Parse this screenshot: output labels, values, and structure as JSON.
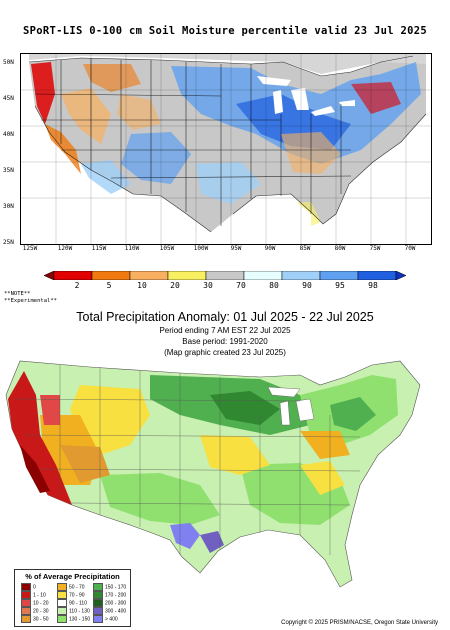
{
  "map1": {
    "title": "SPoRT-LIS 0-100 cm Soil Moisture percentile valid 23 Jul 2025",
    "lat_labels": [
      "50N",
      "45N",
      "40N",
      "35N",
      "30N",
      "25N"
    ],
    "lon_labels": [
      "125W",
      "120W",
      "115W",
      "110W",
      "105W",
      "100W",
      "95W",
      "90W",
      "85W",
      "80W",
      "75W",
      "70W"
    ],
    "legend_labels": [
      "2",
      "5",
      "10",
      "20",
      "30",
      "70",
      "80",
      "90",
      "95",
      "98"
    ],
    "legend_colors": [
      "#8b0000",
      "#e00000",
      "#f07a10",
      "#f8b060",
      "#f8f060",
      "#c8c8c8",
      "#e8ffff",
      "#a0d0f8",
      "#60a0f0",
      "#2060e0",
      "#1030c0"
    ],
    "note1": "**NOTE**",
    "note2": "**Experimental**"
  },
  "map2": {
    "title": "Total Precipitation Anomaly: 01 Jul 2025 - 22 Jul 2025",
    "subtitle1": "Period ending 7 AM EST 22 Jul 2025",
    "subtitle2": "Base period: 1991-2020",
    "subtitle3": "(Map graphic created 23 Jul 2025)",
    "legend_title": "% of Average Precipitation",
    "legend_items": [
      {
        "label": "0",
        "color": "#8b0000"
      },
      {
        "label": "1 - 10",
        "color": "#c81818"
      },
      {
        "label": "10 - 20",
        "color": "#e04848"
      },
      {
        "label": "20 - 30",
        "color": "#e07850"
      },
      {
        "label": "30 - 50",
        "color": "#e09a30"
      },
      {
        "label": "50 - 70",
        "color": "#f0b020"
      },
      {
        "label": "70 - 90",
        "color": "#f8e040"
      },
      {
        "label": "90 - 110",
        "color": "#ffffff"
      },
      {
        "label": "110 - 130",
        "color": "#c8f0b0"
      },
      {
        "label": "130 - 150",
        "color": "#90e070"
      },
      {
        "label": "150 - 170",
        "color": "#50b050"
      },
      {
        "label": "170 - 200",
        "color": "#308830"
      },
      {
        "label": "200 - 300",
        "color": "#206020"
      },
      {
        "label": "300 - 400",
        "color": "#7060c0"
      },
      {
        "label": "> 400",
        "color": "#8080f0"
      }
    ],
    "copyright": "Copyright © 2025 PRISM/NACSE, Oregon State University"
  }
}
